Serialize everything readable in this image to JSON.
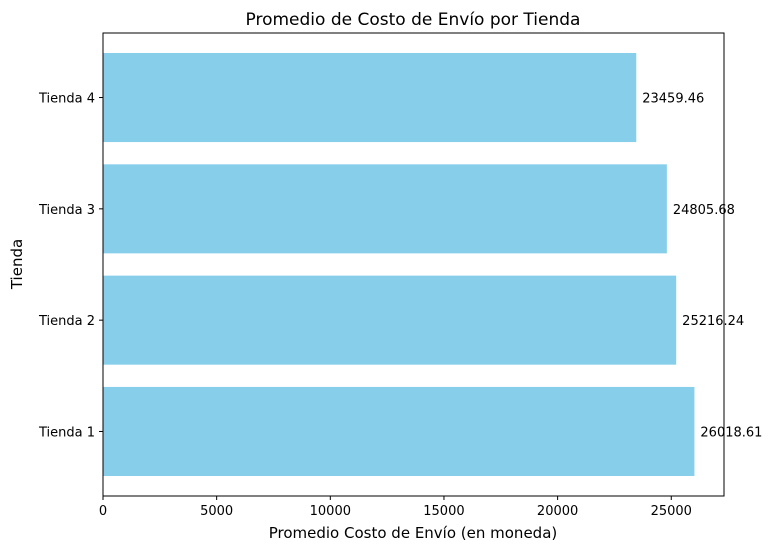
{
  "chart_data": {
    "type": "bar",
    "orientation": "horizontal",
    "title": "Promedio de Costo de Envío por Tienda",
    "xlabel": "Promedio Costo de Envío (en moneda)",
    "ylabel": "Tienda",
    "categories": [
      "Tienda 1",
      "Tienda 2",
      "Tienda 3",
      "Tienda 4"
    ],
    "values": [
      26018.61,
      25216.24,
      24805.68,
      23459.46
    ],
    "data_labels": [
      "26018.61",
      "25216.24",
      "24805.68",
      "23459.46"
    ],
    "xlim": [
      0,
      27320
    ],
    "xticks": [
      0,
      5000,
      10000,
      15000,
      20000,
      25000
    ],
    "xtick_labels": [
      "0",
      "5000",
      "10000",
      "15000",
      "20000",
      "25000"
    ],
    "bar_color": "#87ceeb",
    "grid": false
  }
}
